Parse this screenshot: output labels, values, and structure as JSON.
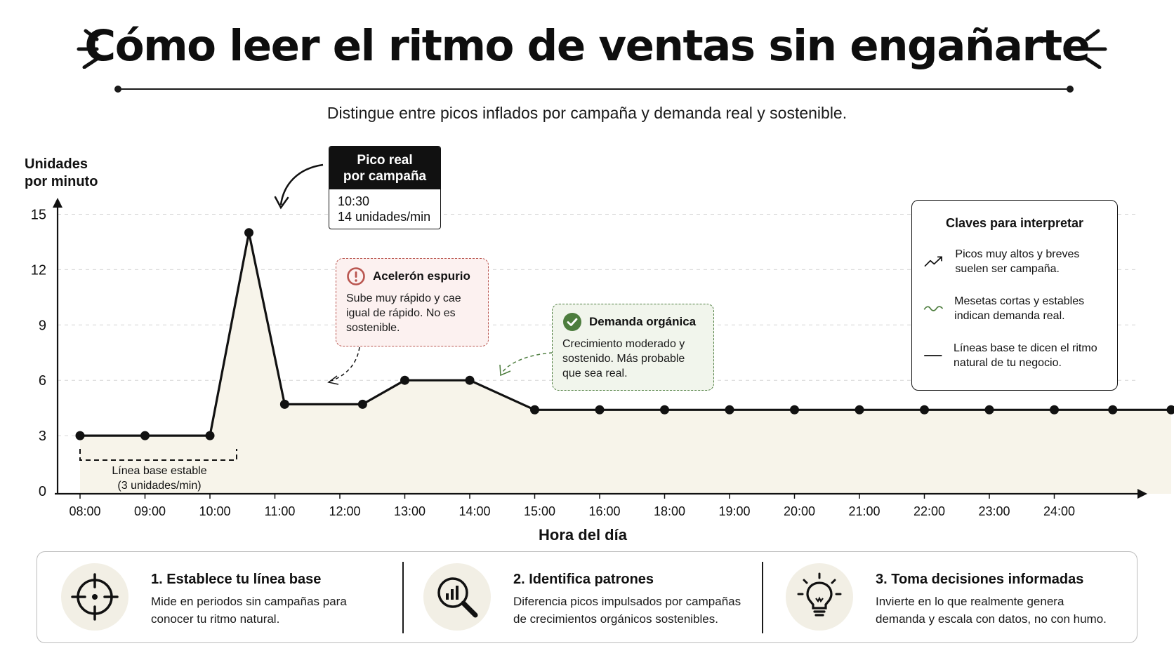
{
  "title": "Cómo leer el ritmo de ventas sin engañarte",
  "subtitle": "Distingue entre picos inflados por campaña y demanda real y sostenible.",
  "chart_data": {
    "type": "line",
    "ylabel": "Unidades\npor minuto",
    "xlabel": "Hora del día",
    "ylim": [
      0,
      15
    ],
    "yticks": [
      0,
      3,
      6,
      9,
      12,
      15
    ],
    "categories": [
      "08:00",
      "09:00",
      "10:00",
      "11:00",
      "12:00",
      "13:00",
      "14:00",
      "15:00",
      "16:00",
      "18:00",
      "19:00",
      "20:00",
      "21:00",
      "22:00",
      "23:00",
      "24:00"
    ],
    "grid": "horizontal dashed",
    "fill": "area under line",
    "series": [
      {
        "values": [
          {
            "x": 0.0,
            "y": 3
          },
          {
            "x": 1.0,
            "y": 3
          },
          {
            "x": 2.0,
            "y": 3
          },
          {
            "x": 2.6,
            "y": 14
          },
          {
            "x": 3.15,
            "y": 4.7
          },
          {
            "x": 4.35,
            "y": 4.7
          },
          {
            "x": 5.0,
            "y": 6
          },
          {
            "x": 6.0,
            "y": 6
          },
          {
            "x": 7.0,
            "y": 4.4
          },
          {
            "x": 8.0,
            "y": 4.4
          },
          {
            "x": 9.0,
            "y": 4.4
          },
          {
            "x": 10.0,
            "y": 4.4
          },
          {
            "x": 11.0,
            "y": 4.4
          },
          {
            "x": 12.0,
            "y": 4.4
          },
          {
            "x": 13.0,
            "y": 4.4
          },
          {
            "x": 14.0,
            "y": 4.4
          },
          {
            "x": 15.0,
            "y": 4.4
          },
          {
            "x": 15.9,
            "y": 4.4
          },
          {
            "x": 16.8,
            "y": 4.4
          }
        ]
      }
    ],
    "annotations": {
      "peak": {
        "title": "Pico real\npor campaña",
        "time": "10:30",
        "value": "14 unidades/min"
      },
      "spurious": {
        "title": "Acelerón espurio",
        "text": "Sube muy rápido y cae igual de rápido. No es sostenible.",
        "color": "#b9554f"
      },
      "organic": {
        "title": "Demanda orgánica",
        "text": "Crecimiento moderado y sostenido. Más probable que sea real.",
        "color": "#4d7d3e"
      },
      "baseline": {
        "text": "Línea base estable\n(3 unidades/min)"
      }
    }
  },
  "keys": {
    "title": "Claves para interpretar",
    "items": [
      {
        "icon": "trend-up-icon",
        "text": "Picos muy altos y breves suelen ser campaña."
      },
      {
        "icon": "wave-icon",
        "text": "Mesetas cortas y estables indican demanda real."
      },
      {
        "icon": "flat-line-icon",
        "text": "Líneas base te dicen el ritmo natural de tu negocio."
      }
    ]
  },
  "steps": [
    {
      "icon": "crosshair-icon",
      "title": "1. Establece tu línea base",
      "desc": "Mide en periodos sin campañas para conocer tu ritmo natural."
    },
    {
      "icon": "magnifier-chart-icon",
      "title": "2. Identifica patrones",
      "desc": "Diferencia picos impulsados por campañas de crecimientos orgánicos sostenibles."
    },
    {
      "icon": "lightbulb-icon",
      "title": "3. Toma decisiones informadas",
      "desc": "Invierte en lo que realmente genera demanda y escala con datos, no con humo."
    }
  ],
  "colors": {
    "fill": "#f7f4ea",
    "line": "#111111",
    "spurious": "#b9554f",
    "organic": "#4d7d3e"
  }
}
